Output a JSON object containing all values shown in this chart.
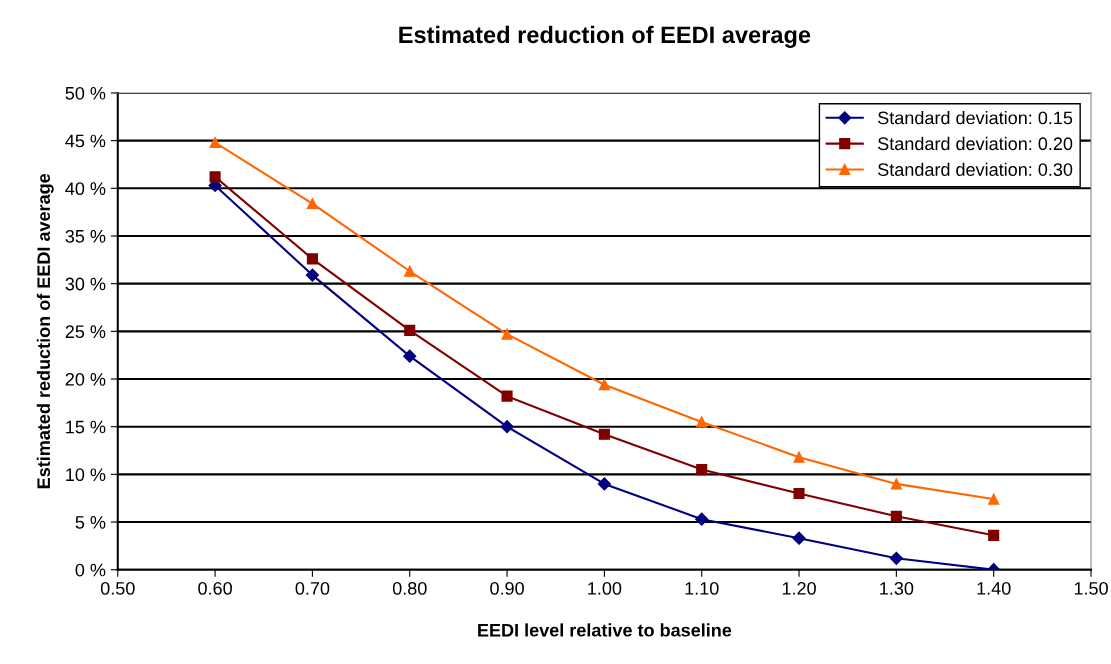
{
  "chart_data": {
    "type": "line",
    "title": "Estimated reduction of EEDI average",
    "xlabel": "EEDI level relative to baseline",
    "ylabel": "Estimated reduction of EEDI average",
    "x": [
      0.6,
      0.7,
      0.8,
      0.9,
      1.0,
      1.1,
      1.2,
      1.3,
      1.4
    ],
    "series": [
      {
        "name": "Standard deviation: 0.15",
        "color": "#000080",
        "marker": "diamond",
        "values": [
          40.3,
          30.9,
          22.4,
          15.0,
          9.0,
          5.3,
          3.3,
          1.2,
          0.0
        ]
      },
      {
        "name": "Standard deviation: 0.20",
        "color": "#800000",
        "marker": "square",
        "values": [
          41.2,
          32.6,
          25.1,
          18.2,
          14.2,
          10.5,
          8.0,
          5.6,
          3.6
        ]
      },
      {
        "name": "Standard deviation: 0.30",
        "color": "#ff6600",
        "marker": "triangle",
        "values": [
          44.8,
          38.4,
          31.3,
          24.7,
          19.4,
          15.5,
          11.8,
          9.0,
          7.4
        ]
      }
    ],
    "xlim": [
      0.5,
      1.5
    ],
    "xticks": [
      {
        "value": 0.5,
        "label": "0.50"
      },
      {
        "value": 0.6,
        "label": "0.60"
      },
      {
        "value": 0.7,
        "label": "0.70"
      },
      {
        "value": 0.8,
        "label": "0.80"
      },
      {
        "value": 0.9,
        "label": "0.90"
      },
      {
        "value": 1.0,
        "label": "1.00"
      },
      {
        "value": 1.1,
        "label": "1.10"
      },
      {
        "value": 1.2,
        "label": "1.20"
      },
      {
        "value": 1.3,
        "label": "1.30"
      },
      {
        "value": 1.4,
        "label": "1.40"
      },
      {
        "value": 1.5,
        "label": "1.50"
      }
    ],
    "ylim": [
      0,
      50
    ],
    "yticks": [
      {
        "value": 0,
        "label": "0 %"
      },
      {
        "value": 5,
        "label": "5 %"
      },
      {
        "value": 10,
        "label": "10 %"
      },
      {
        "value": 15,
        "label": "15 %"
      },
      {
        "value": 20,
        "label": "20 %"
      },
      {
        "value": 25,
        "label": "25 %"
      },
      {
        "value": 30,
        "label": "30 %"
      },
      {
        "value": 35,
        "label": "35 %"
      },
      {
        "value": 40,
        "label": "40 %"
      },
      {
        "value": 45,
        "label": "45 %"
      },
      {
        "value": 50,
        "label": "50 %"
      }
    ],
    "grid": "y",
    "legend": "top right",
    "line_style": "solid"
  }
}
